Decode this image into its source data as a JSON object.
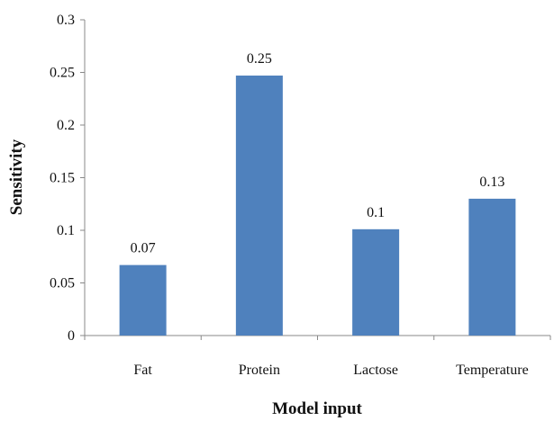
{
  "chart_data": {
    "type": "bar",
    "categories": [
      "Fat",
      "Protein",
      "Lactose",
      "Temperature"
    ],
    "values": [
      0.067,
      0.247,
      0.101,
      0.13
    ],
    "data_labels": [
      "0.07",
      "0.25",
      "0.1",
      "0.13"
    ],
    "y_ticks": [
      "0",
      "0.05",
      "0.1",
      "0.15",
      "0.2",
      "0.25",
      "0.3"
    ],
    "ylim": [
      0,
      0.3
    ],
    "xlabel": "Model input",
    "ylabel": "Sensitivity",
    "grid": false,
    "legend": "none",
    "bar_color": "#4F81BD"
  }
}
